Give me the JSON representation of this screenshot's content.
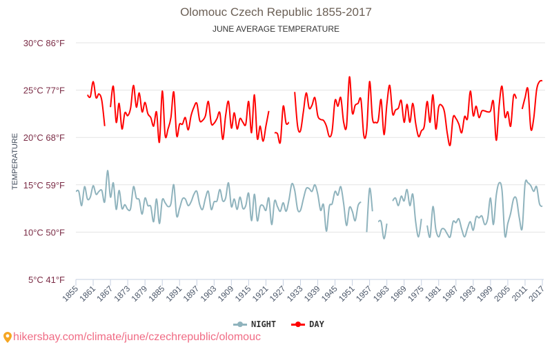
{
  "chart_data": {
    "type": "line",
    "title": "Olomouc Czech Republic 1855-2017",
    "subtitle": "JUNE AVERAGE TEMPERATURE",
    "ylabel": "TEMPERATURE",
    "xlabel": "",
    "ylim": [
      5,
      30
    ],
    "xlim": [
      1855,
      2017
    ],
    "grid": true,
    "legend_position": "bottom",
    "y_ticks": [
      {
        "value": 5,
        "label": "5°C 41°F"
      },
      {
        "value": 10,
        "label": "10°C 50°F"
      },
      {
        "value": 15,
        "label": "15°C 59°F"
      },
      {
        "value": 20,
        "label": "20°C 68°F"
      },
      {
        "value": 25,
        "label": "25°C 77°F"
      },
      {
        "value": 30,
        "label": "30°C 86°F"
      }
    ],
    "x_ticks": [
      "1855",
      "1861",
      "1867",
      "1873",
      "1879",
      "1885",
      "1891",
      "1897",
      "1903",
      "1909",
      "1915",
      "1921",
      "1927",
      "1933",
      "1939",
      "1945",
      "1951",
      "1957",
      "1963",
      "1969",
      "1975",
      "1981",
      "1987",
      "1993",
      "1999",
      "2005",
      "2011",
      "2017"
    ],
    "x_start": 1855,
    "series": [
      {
        "name": "NIGHT",
        "color": "#8fb3bd",
        "values": [
          14.3,
          14.3,
          12.8,
          14.8,
          13.5,
          13.7,
          14.9,
          14.0,
          14.3,
          14.4,
          13.2,
          16.5,
          13.7,
          15.2,
          12.4,
          14.4,
          12.5,
          12.9,
          12.4,
          12.5,
          14.8,
          13.6,
          13.4,
          11.9,
          13.6,
          12.8,
          12.7,
          11.1,
          13.5,
          10.9,
          13.4,
          13.1,
          12.7,
          13.0,
          15.0,
          11.7,
          12.5,
          13.5,
          13.5,
          12.8,
          13.2,
          14.0,
          14.3,
          12.9,
          12.4,
          13.6,
          14.3,
          12.4,
          13.2,
          13.3,
          14.5,
          13.3,
          13.6,
          15.2,
          12.7,
          13.5,
          12.4,
          13.7,
          12.5,
          12.8,
          14.1,
          11.2,
          14.0,
          11.2,
          12.7,
          12.8,
          12.3,
          13.6,
          10.8,
          13.3,
          12.7,
          12.2,
          13.1,
          12.2,
          13.4,
          15.1,
          14.4,
          12.4,
          12.3,
          13.5,
          14.6,
          14.6,
          14.3,
          15.0,
          14.0,
          12.3,
          12.9,
          10.1,
          12.7,
          13.0,
          14.3,
          13.9,
          14.8,
          13.0,
          10.7,
          12.6,
          12.2,
          11.2,
          12.8,
          13.2,
          null,
          10.0,
          14.6,
          12.2,
          null,
          11.1,
          11.1,
          9.3,
          10.9,
          null,
          13.3,
          13.6,
          12.8,
          13.8,
          13.3,
          14.5,
          12.8,
          14.0,
          11.1,
          9.5,
          11.4,
          null,
          10.7,
          9.5,
          12.7,
          10.3,
          9.5,
          10.3,
          10.3,
          9.8,
          9.5,
          11.1,
          11.0,
          11.4,
          10.3,
          9.5,
          10.4,
          11.1,
          10.2,
          11.6,
          11.5,
          11.7,
          10.8,
          11.4,
          13.6,
          10.8,
          13.9,
          15.2,
          14.4,
          9.6,
          10.9,
          12.0,
          13.5,
          13.5,
          11.5,
          10.4,
          15.1,
          15.2,
          14.9,
          14.3,
          14.8,
          13.0,
          12.7
        ]
      },
      {
        "name": "DAY",
        "color": "#ff0000",
        "values": [
          null,
          null,
          null,
          null,
          24.5,
          24.3,
          25.9,
          24.2,
          24.6,
          23.9,
          21.2,
          null,
          23.2,
          25.4,
          21.6,
          23.6,
          20.9,
          22.6,
          22.3,
          23.1,
          25.5,
          23.2,
          24.7,
          22.7,
          23.7,
          22.5,
          22.1,
          21.2,
          22.7,
          19.5,
          24.9,
          20.2,
          20.9,
          22.1,
          24.8,
          20.2,
          21.4,
          21.4,
          22.1,
          20.8,
          22.3,
          23.2,
          23.6,
          21.8,
          21.8,
          22.3,
          23.8,
          21.5,
          21.5,
          22.0,
          22.6,
          19.8,
          22.3,
          23.8,
          21.0,
          22.6,
          20.9,
          22.0,
          21.6,
          21.4,
          23.8,
          20.5,
          24.5,
          19.9,
          21.2,
          19.6,
          21.2,
          22.8,
          null,
          20.5,
          20.4,
          19.5,
          23.3,
          21.5,
          21.6,
          null,
          24.8,
          21.2,
          20.7,
          22.7,
          24.7,
          23.1,
          23.4,
          24.2,
          22.3,
          21.9,
          21.8,
          21.2,
          20.1,
          20.7,
          23.9,
          23.3,
          24.2,
          21.6,
          21.2,
          26.4,
          22.6,
          23.4,
          23.6,
          24.0,
          20.2,
          20.8,
          25.9,
          22.0,
          21.6,
          21.8,
          24.0,
          20.3,
          23.5,
          25.5,
          22.5,
          22.9,
          23.1,
          23.9,
          21.6,
          23.5,
          21.6,
          23.6,
          21.5,
          20.1,
          20.7,
          21.2,
          23.8,
          21.6,
          24.5,
          20.9,
          23.2,
          23.4,
          22.7,
          20.4,
          19.2,
          22.1,
          22.0,
          21.4,
          20.5,
          22.2,
          22.0,
          24.9,
          22.3,
          23.3,
          22.1,
          22.8,
          22.8,
          22.7,
          22.8,
          23.8,
          19.7,
          23.4,
          25.4,
          22.2,
          22.7,
          21.2,
          24.4,
          24.1,
          null,
          23.0,
          24.2,
          25.1,
          20.9,
          22.0,
          25.0,
          25.9,
          26.0
        ]
      }
    ]
  },
  "footer": {
    "url": "hikersbay.com/climate/june/czechrepublic/olomouc"
  }
}
